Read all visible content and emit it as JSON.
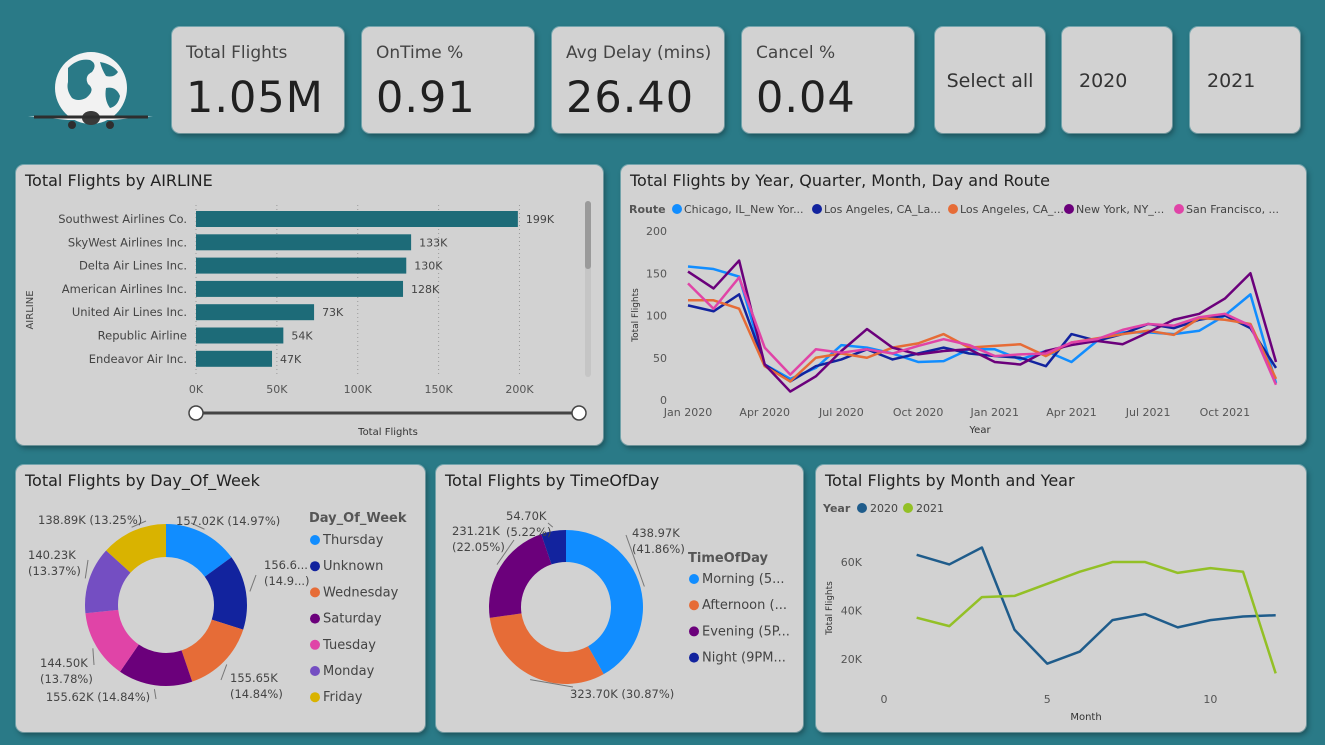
{
  "kpis": [
    {
      "label": "Total Flights",
      "value": "1.05M"
    },
    {
      "label": "OnTime %",
      "value": "0.91"
    },
    {
      "label": "Avg Delay (mins)",
      "value": "26.40"
    },
    {
      "label": "Cancel %",
      "value": "0.04"
    }
  ],
  "slicer": {
    "options": [
      "Select all",
      "2020",
      "2021"
    ]
  },
  "colors": {
    "background": "#2a7a87",
    "card": "#d2d2d2",
    "bar": "#1d6b78",
    "c2020": "#1f5c8b",
    "c2021": "#93c026"
  },
  "airline_chart": {
    "title": "Total Flights by AIRLINE",
    "y_axis_title": "AIRLINE",
    "x_axis_title": "Total Flights",
    "x_ticks": [
      "0K",
      "50K",
      "100K",
      "150K",
      "200K"
    ],
    "chart_data": {
      "type": "bar",
      "orientation": "horizontal",
      "categories": [
        "Southwest Airlines Co.",
        "SkyWest Airlines Inc.",
        "Delta Air Lines Inc.",
        "American Airlines Inc.",
        "United Air Lines Inc.",
        "Republic Airline",
        "Endeavor Air Inc."
      ],
      "values": [
        199000,
        133000,
        130000,
        128000,
        73000,
        54000,
        47000
      ],
      "data_labels": [
        "199K",
        "133K",
        "130K",
        "128K",
        "73K",
        "54K",
        "47K"
      ],
      "xlim": [
        0,
        230000
      ]
    }
  },
  "route_chart": {
    "title": "Total Flights by Year, Quarter, Month, Day and Route",
    "legend_title": "Route",
    "y_axis_title": "Total Flights",
    "x_axis_title": "Year",
    "y_ticks": [
      "0",
      "50",
      "100",
      "150",
      "200"
    ],
    "x_ticks": [
      "Jan 2020",
      "Apr 2020",
      "Jul 2020",
      "Oct 2020",
      "Jan 2021",
      "Apr 2021",
      "Jul 2021",
      "Oct 2021"
    ],
    "chart_data": {
      "type": "line",
      "ylim": [
        0,
        200
      ],
      "x": [
        "2020-01",
        "2020-02",
        "2020-03",
        "2020-04",
        "2020-05",
        "2020-06",
        "2020-07",
        "2020-08",
        "2020-09",
        "2020-10",
        "2020-11",
        "2020-12",
        "2021-01",
        "2021-02",
        "2021-03",
        "2021-04",
        "2021-05",
        "2021-06",
        "2021-07",
        "2021-08",
        "2021-09",
        "2021-10",
        "2021-11",
        "2021-12"
      ],
      "series": [
        {
          "name": "Chicago, IL_New Yor...",
          "color": "#118dff",
          "values": [
            158,
            155,
            146,
            42,
            25,
            38,
            65,
            62,
            55,
            45,
            46,
            60,
            60,
            48,
            58,
            45,
            70,
            80,
            80,
            78,
            82,
            100,
            125,
            20
          ]
        },
        {
          "name": "Los Angeles, CA_La...",
          "color": "#12239e",
          "values": [
            112,
            105,
            125,
            42,
            22,
            40,
            48,
            60,
            48,
            55,
            62,
            55,
            52,
            50,
            40,
            78,
            70,
            78,
            90,
            85,
            95,
            100,
            85,
            38
          ]
        },
        {
          "name": "Los Angeles, CA_...",
          "color": "#e66c37",
          "values": [
            118,
            118,
            108,
            40,
            22,
            50,
            55,
            50,
            62,
            67,
            78,
            62,
            64,
            66,
            52,
            68,
            73,
            78,
            82,
            77,
            97,
            95,
            90,
            25
          ]
        },
        {
          "name": "New York, NY_...",
          "color": "#6b007b",
          "values": [
            152,
            132,
            165,
            42,
            10,
            28,
            58,
            84,
            62,
            54,
            58,
            60,
            45,
            42,
            58,
            65,
            70,
            66,
            80,
            95,
            102,
            120,
            150,
            45
          ]
        },
        {
          "name": "San Francisco, ...",
          "color": "#e044a7",
          "values": [
            138,
            108,
            145,
            62,
            30,
            60,
            56,
            60,
            55,
            64,
            72,
            65,
            52,
            54,
            55,
            68,
            72,
            83,
            90,
            88,
            98,
            102,
            88,
            18
          ]
        }
      ]
    }
  },
  "dow_chart": {
    "title": "Total Flights by Day_Of_Week",
    "legend_title": "Day_Of_Week",
    "chart_data": {
      "type": "pie",
      "donut": true,
      "slices": [
        {
          "label": "Thursday",
          "value": 157020,
          "color": "#118dff",
          "data_label": [
            "157.02K (14.97%)"
          ]
        },
        {
          "label": "Unknown",
          "value": 156600,
          "color": "#12239e",
          "data_label": [
            "156.6...",
            "(14.9...)"
          ]
        },
        {
          "label": "Wednesday",
          "value": 155650,
          "color": "#e66c37",
          "data_label": [
            "155.65K",
            "(14.84%)"
          ]
        },
        {
          "label": "Saturday",
          "value": 155620,
          "color": "#6b007b",
          "data_label": [
            "155.62K (14.84%)"
          ]
        },
        {
          "label": "Tuesday",
          "value": 144500,
          "color": "#e044a7",
          "data_label": [
            "144.50K",
            "(13.78%)"
          ]
        },
        {
          "label": "Monday",
          "value": 140230,
          "color": "#744ec2",
          "data_label": [
            "140.23K",
            "(13.37%)"
          ]
        },
        {
          "label": "Friday",
          "value": 138890,
          "color": "#d9b300",
          "data_label": [
            "138.89K (13.25%)"
          ]
        }
      ]
    }
  },
  "tod_chart": {
    "title": "Total Flights by TimeOfDay",
    "legend_title": "TimeOfDay",
    "chart_data": {
      "type": "pie",
      "donut": true,
      "slices": [
        {
          "label": "Morning (5...",
          "value": 438970,
          "color": "#118dff",
          "data_label": [
            "438.97K",
            "(41.86%)"
          ]
        },
        {
          "label": "Afternoon (...",
          "value": 323700,
          "color": "#e66c37",
          "data_label": [
            "323.70K (30.87%)"
          ]
        },
        {
          "label": "Evening (5P...",
          "value": 231210,
          "color": "#6b007b",
          "data_label": [
            "231.21K",
            "(22.05%)"
          ]
        },
        {
          "label": "Night (9PM...",
          "value": 54700,
          "color": "#12239e",
          "data_label": [
            "54.70K",
            "(5.22%)"
          ]
        }
      ]
    }
  },
  "month_chart": {
    "title": "Total Flights by Month and Year",
    "legend_title": "Year",
    "y_axis_title": "Total Flights",
    "x_axis_title": "Month",
    "y_ticks": [
      "20K",
      "40K",
      "60K"
    ],
    "x_ticks": [
      "0",
      "5",
      "10"
    ],
    "chart_data": {
      "type": "line",
      "x": [
        1,
        2,
        3,
        4,
        5,
        6,
        7,
        8,
        9,
        10,
        11,
        12
      ],
      "xlim": [
        0,
        12.5
      ],
      "ylim": [
        10000,
        72000
      ],
      "series": [
        {
          "name": "2020",
          "color": "#1f5c8b",
          "values": [
            63000,
            59000,
            66000,
            32000,
            18000,
            23000,
            36000,
            38500,
            33000,
            36000,
            37500,
            38000
          ]
        },
        {
          "name": "2021",
          "color": "#93c026",
          "values": [
            37000,
            33500,
            45500,
            46000,
            51000,
            56000,
            60000,
            60000,
            55500,
            57500,
            56000,
            14000
          ]
        }
      ]
    }
  }
}
